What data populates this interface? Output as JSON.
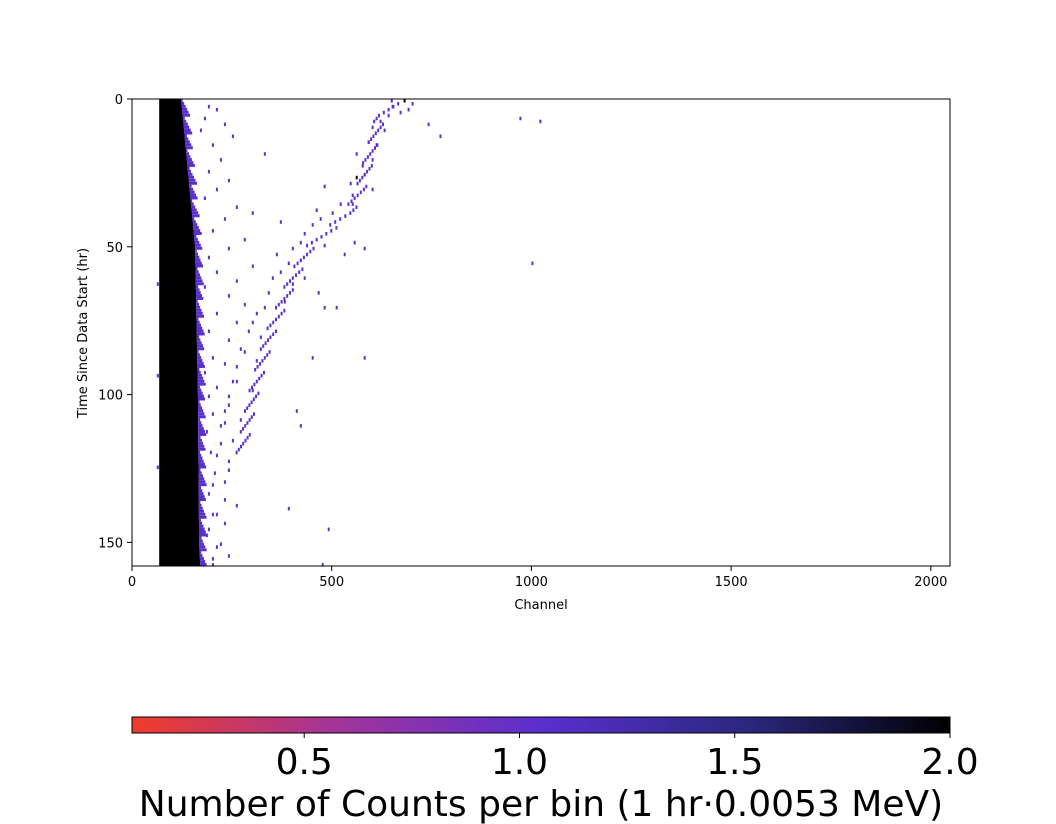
{
  "chart_data": {
    "type": "heatmap",
    "title": "",
    "xlabel": "Channel",
    "ylabel": "Time Since Data Start (hr)",
    "xlim": [
      0,
      2048
    ],
    "ylim": [
      158,
      0
    ],
    "x_ticks": [
      0,
      500,
      1000,
      1500,
      2000
    ],
    "y_ticks": [
      0,
      50,
      100,
      150
    ],
    "colorbar": {
      "label": "Number of Counts per bin (1 hr·0.0053 MeV)",
      "range": [
        0.1,
        2.0
      ],
      "ticks": [
        0.5,
        1.0,
        1.5,
        2.0
      ],
      "colors": [
        "#f03c2a",
        "#a3349b",
        "#5a2fcf",
        "#2b2880",
        "#000000"
      ]
    },
    "dense_region": {
      "channel_start": 68,
      "edge_channel_by_time": [
        [
          0,
          123
        ],
        [
          50,
          158
        ],
        [
          100,
          165
        ],
        [
          150,
          168
        ],
        [
          158,
          171
        ]
      ],
      "value": 2
    },
    "annotation_track": [
      [
        [
          0,
          660
        ],
        [
          5,
          620
        ],
        [
          10,
          610
        ],
        [
          20,
          590
        ],
        [
          30,
          570
        ],
        [
          38,
          540
        ],
        [
          45,
          480
        ],
        [
          50,
          440
        ],
        [
          60,
          400
        ],
        [
          70,
          370
        ],
        [
          80,
          340
        ],
        [
          90,
          320
        ],
        [
          100,
          300
        ],
        [
          110,
          285
        ],
        [
          120,
          270
        ]
      ]
    ],
    "sparse_points": [
      [
        0,
        680,
        2
      ],
      [
        1,
        700,
        1
      ],
      [
        2,
        650,
        1
      ],
      [
        3,
        690,
        1
      ],
      [
        4,
        670,
        1
      ],
      [
        5,
        640,
        1
      ],
      [
        7,
        620,
        1
      ],
      [
        8,
        740,
        1
      ],
      [
        9,
        600,
        1
      ],
      [
        10,
        630,
        1
      ],
      [
        12,
        770,
        1
      ],
      [
        14,
        590,
        1
      ],
      [
        15,
        610,
        1
      ],
      [
        18,
        560,
        1
      ],
      [
        20,
        600,
        1
      ],
      [
        22,
        575,
        1
      ],
      [
        25,
        580,
        1
      ],
      [
        26,
        560,
        2
      ],
      [
        28,
        545,
        1
      ],
      [
        30,
        600,
        1
      ],
      [
        32,
        550,
        1
      ],
      [
        35,
        520,
        1
      ],
      [
        38,
        500,
        1
      ],
      [
        40,
        470,
        1
      ],
      [
        42,
        450,
        1
      ],
      [
        45,
        430,
        1
      ],
      [
        48,
        420,
        1
      ],
      [
        50,
        400,
        1
      ],
      [
        52,
        360,
        1
      ],
      [
        55,
        390,
        1
      ],
      [
        58,
        370,
        1
      ],
      [
        60,
        350,
        1
      ],
      [
        62,
        400,
        1
      ],
      [
        65,
        340,
        1
      ],
      [
        68,
        380,
        1
      ],
      [
        70,
        330,
        1
      ],
      [
        72,
        310,
        1
      ],
      [
        75,
        300,
        1
      ],
      [
        78,
        290,
        1
      ],
      [
        80,
        320,
        1
      ],
      [
        85,
        280,
        1
      ],
      [
        88,
        310,
        1
      ],
      [
        90,
        260,
        1
      ],
      [
        95,
        250,
        1
      ],
      [
        98,
        300,
        1
      ],
      [
        100,
        240,
        1
      ],
      [
        105,
        230,
        1
      ],
      [
        108,
        270,
        1
      ],
      [
        110,
        220,
        1
      ],
      [
        115,
        250,
        1
      ],
      [
        120,
        210,
        1
      ],
      [
        125,
        240,
        1
      ],
      [
        130,
        200,
        1
      ],
      [
        135,
        230,
        1
      ],
      [
        140,
        210,
        1
      ],
      [
        145,
        190,
        1
      ],
      [
        150,
        220,
        1
      ],
      [
        155,
        200,
        1
      ],
      [
        2,
        190,
        1
      ],
      [
        3,
        210,
        1
      ],
      [
        6,
        180,
        1
      ],
      [
        8,
        230,
        1
      ],
      [
        10,
        170,
        1
      ],
      [
        12,
        250,
        1
      ],
      [
        15,
        200,
        1
      ],
      [
        18,
        330,
        1
      ],
      [
        20,
        220,
        1
      ],
      [
        24,
        190,
        1
      ],
      [
        27,
        240,
        1
      ],
      [
        30,
        210,
        1
      ],
      [
        33,
        180,
        1
      ],
      [
        36,
        260,
        1
      ],
      [
        38,
        300,
        1
      ],
      [
        40,
        230,
        1
      ],
      [
        44,
        200,
        1
      ],
      [
        47,
        280,
        1
      ],
      [
        50,
        240,
        1
      ],
      [
        53,
        190,
        1
      ],
      [
        56,
        300,
        1
      ],
      [
        58,
        210,
        1
      ],
      [
        61,
        260,
        1
      ],
      [
        63,
        180,
        1
      ],
      [
        66,
        240,
        1
      ],
      [
        69,
        280,
        1
      ],
      [
        72,
        210,
        1
      ],
      [
        75,
        260,
        1
      ],
      [
        78,
        190,
        1
      ],
      [
        81,
        240,
        1
      ],
      [
        84,
        270,
        1
      ],
      [
        87,
        200,
        1
      ],
      [
        89,
        230,
        1
      ],
      [
        92,
        180,
        1
      ],
      [
        95,
        260,
        1
      ],
      [
        97,
        210,
        1
      ],
      [
        100,
        190,
        1
      ],
      [
        103,
        240,
        1
      ],
      [
        106,
        200,
        1
      ],
      [
        109,
        230,
        1
      ],
      [
        112,
        185,
        1
      ],
      [
        116,
        220,
        1
      ],
      [
        119,
        195,
        1
      ],
      [
        122,
        240,
        1
      ],
      [
        126,
        205,
        1
      ],
      [
        129,
        230,
        1
      ],
      [
        133,
        190,
        1
      ],
      [
        137,
        260,
        1
      ],
      [
        140,
        200,
        1
      ],
      [
        143,
        230,
        1
      ],
      [
        147,
        185,
        1
      ],
      [
        151,
        210,
        1
      ],
      [
        154,
        240,
        1
      ],
      [
        157,
        200,
        1
      ],
      [
        6,
        970,
        1
      ],
      [
        7,
        1020,
        1
      ],
      [
        55,
        1000,
        1
      ],
      [
        12,
        770,
        1
      ],
      [
        52,
        530,
        1
      ],
      [
        70,
        480,
        1
      ],
      [
        87,
        580,
        1
      ],
      [
        87,
        450,
        1
      ],
      [
        145,
        490,
        1
      ],
      [
        157,
        475,
        1
      ],
      [
        138,
        390,
        1
      ],
      [
        105,
        410,
        1
      ],
      [
        110,
        420,
        1
      ],
      [
        70,
        510,
        1
      ],
      [
        65,
        465,
        1
      ],
      [
        50,
        580,
        1
      ],
      [
        48,
        555,
        1
      ],
      [
        35,
        550,
        1
      ],
      [
        37,
        460,
        1
      ],
      [
        29,
        480,
        1
      ],
      [
        41,
        370,
        1
      ],
      [
        49,
        480,
        1
      ],
      [
        60,
        430,
        1
      ]
    ],
    "row_outliers": [
      [
        62,
        62
      ],
      [
        93,
        62
      ],
      [
        124,
        62
      ]
    ]
  }
}
